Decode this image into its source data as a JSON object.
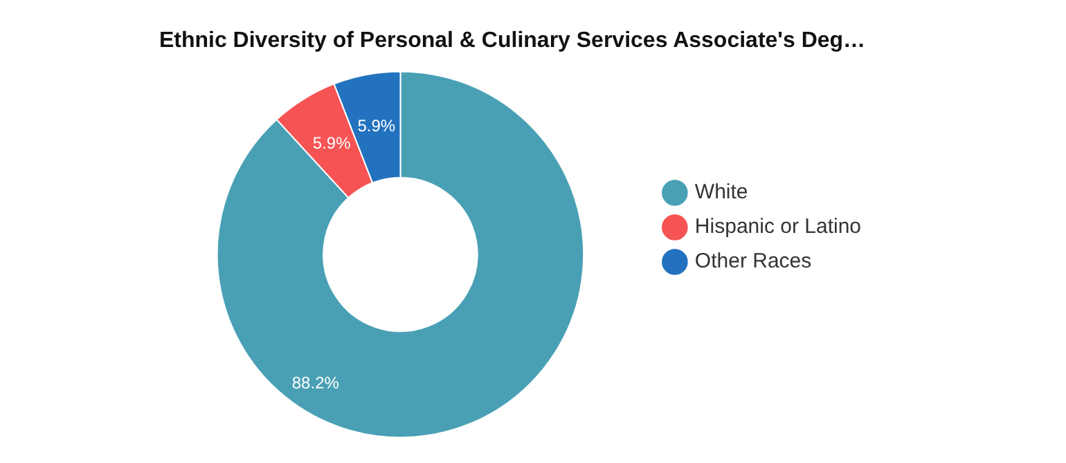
{
  "chart_data": {
    "type": "donut",
    "title": "Ethnic Diversity of Personal & Culinary Services Associate's Deg…",
    "categories": [
      "White",
      "Hispanic or Latino",
      "Other Races"
    ],
    "values": [
      88.2,
      5.9,
      5.9
    ],
    "colors": [
      "#49a0b5",
      "#f65354",
      "#2272bf"
    ],
    "value_labels": [
      "88.2%",
      "5.9%",
      "5.9%"
    ],
    "legend": "right"
  }
}
